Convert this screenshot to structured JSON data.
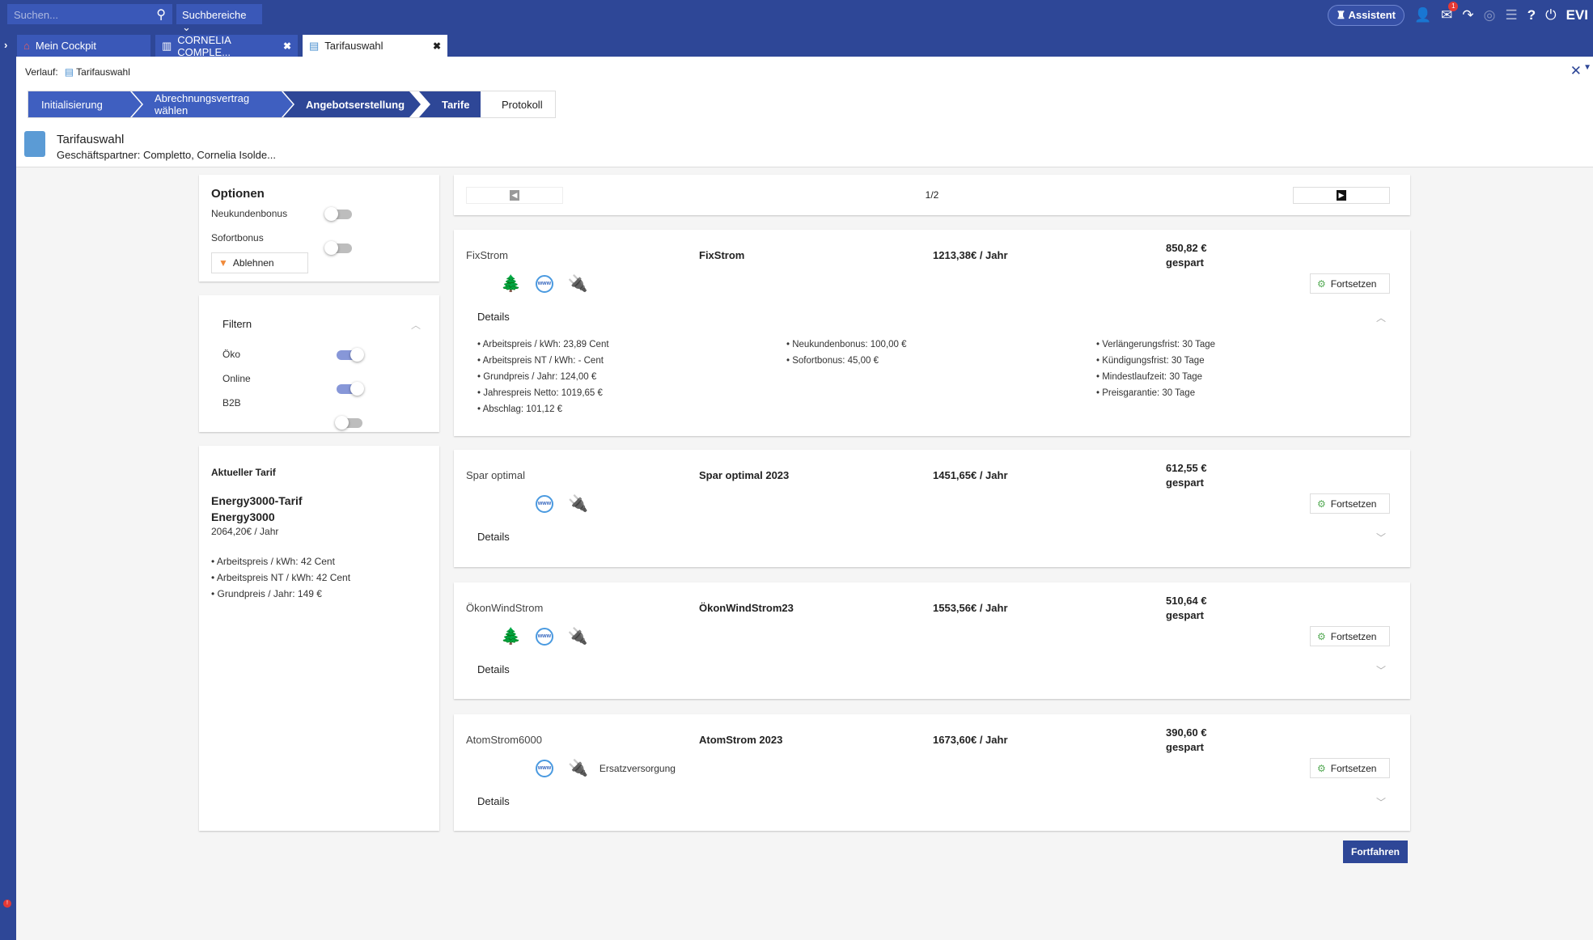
{
  "topbar": {
    "search_placeholder": "Suchen...",
    "search_scope": "Suchbereiche",
    "assistant": "Assistent",
    "inbox_badge": "1",
    "brand": "EVI"
  },
  "tabs": [
    {
      "label": "Mein Cockpit",
      "icon": "home-icon"
    },
    {
      "label": "CORNELIA COMPLE...",
      "icon": "building-person-icon"
    },
    {
      "label": "Tarifauswahl",
      "icon": "document-person-icon",
      "active": true
    }
  ],
  "history": {
    "label": "Verlauf:",
    "item": "Tarifauswahl"
  },
  "steps": [
    {
      "label": "Initialisierung",
      "state": "done"
    },
    {
      "label": "Abrechnungsvertrag wählen",
      "state": "done"
    },
    {
      "label": "Angebotserstellung",
      "state": "current"
    },
    {
      "label": "Tarife",
      "state": "current"
    },
    {
      "label": "Protokoll",
      "state": "todo"
    }
  ],
  "header": {
    "title": "Tarifauswahl",
    "subtitle": "Geschäftspartner: Completto, Cornelia Isolde..."
  },
  "options": {
    "title": "Optionen",
    "toggles": [
      {
        "label": "Neukundenbonus",
        "on": false
      },
      {
        "label": "Sofortbonus",
        "on": false
      }
    ],
    "reject": "Ablehnen"
  },
  "filter": {
    "title": "Filtern",
    "toggles": [
      {
        "label": "Öko",
        "on": true
      },
      {
        "label": "Online",
        "on": true
      },
      {
        "label": "B2B",
        "on": false
      }
    ]
  },
  "current": {
    "title": "Aktueller Tarif",
    "name1": "Energy3000-Tarif",
    "name2": "Energy3000",
    "price": "2064,20€ / Jahr",
    "items": [
      "• Arbeitspreis / kWh: 42 Cent",
      "• Arbeitspreis NT / kWh: 42 Cent",
      "• Grundpreis / Jahr: 149 €"
    ]
  },
  "pager": {
    "text": "1/2"
  },
  "tariffs": [
    {
      "name": "FixStrom",
      "product": "FixStrom",
      "price": "1213,38€ / Jahr",
      "saved": "850,82 €",
      "saved_label": "gespart",
      "icons": [
        "eco-trees-icon",
        "www-icon",
        "plug-icon"
      ],
      "note": "",
      "details_label": "Details",
      "expanded": true,
      "details": [
        [
          "• Arbeitspreis / kWh: 23,89 Cent",
          "• Arbeitspreis NT / kWh: - Cent",
          "• Grundpreis / Jahr: 124,00 €",
          "• Jahrespreis Netto: 1019,65 €",
          "• Abschlag: 101,12 €"
        ],
        [
          "• Neukundenbonus: 100,00 €",
          "• Sofortbonus: 45,00 €"
        ],
        [
          "• Verlängerungsfrist: 30 Tage",
          "• Kündigungsfrist: 30 Tage",
          "• Mindestlaufzeit: 30 Tage",
          "• Preisgarantie: 30 Tage"
        ]
      ]
    },
    {
      "name": "Spar optimal",
      "product": "Spar optimal 2023",
      "price": "1451,65€ / Jahr",
      "saved": "612,55 €",
      "saved_label": "gespart",
      "icons": [
        "www-icon",
        "plug-icon"
      ],
      "note": "",
      "details_label": "Details",
      "expanded": false
    },
    {
      "name": "ÖkonWindStrom",
      "product": "ÖkonWindStrom23",
      "price": "1553,56€ / Jahr",
      "saved": "510,64 €",
      "saved_label": "gespart",
      "icons": [
        "eco-trees-icon",
        "www-icon",
        "plug-icon"
      ],
      "note": "",
      "details_label": "Details",
      "expanded": false
    },
    {
      "name": "AtomStrom6000",
      "product": "AtomStrom 2023",
      "price": "1673,60€ / Jahr",
      "saved": "390,60 €",
      "saved_label": "gespart",
      "icons": [
        "www-icon",
        "plug-icon"
      ],
      "note": "Ersatzversorgung",
      "details_label": "Details",
      "expanded": false
    }
  ],
  "continue_label": "Fortsetzen",
  "proceed_label": "Fortfahren",
  "colors": {
    "primary": "#2e4797",
    "step": "#3f5fc0",
    "toggle_on": "#8797d8"
  }
}
